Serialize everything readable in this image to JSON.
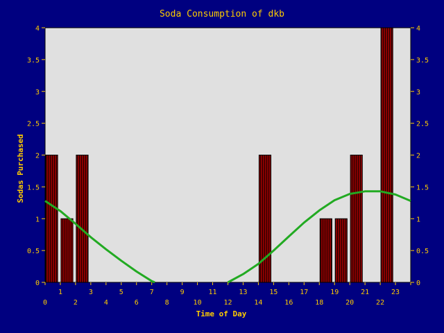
{
  "colors": {
    "background": "#000080",
    "plot_area": "#e0e0e0",
    "text": "#ffcc00",
    "bar_fill": "#880000",
    "bar_stripe": "#220000",
    "trend_line": "#22aa22",
    "axis": "#000000"
  },
  "chart_data": {
    "type": "bar",
    "title": "Soda Consumption of dkb",
    "xlabel": "Time of Day",
    "ylabel": "Sodas Purchased",
    "x_ticks_bottom": [
      "0",
      "2",
      "4",
      "6",
      "8",
      "10",
      "12",
      "14",
      "16",
      "18",
      "20",
      "22"
    ],
    "x_ticks_top": [
      "1",
      "3",
      "5",
      "7",
      "9",
      "11",
      "13",
      "15",
      "17",
      "19",
      "21",
      "23"
    ],
    "y_ticks": [
      "0",
      "0.5",
      "1",
      "1.5",
      "2",
      "2.5",
      "3",
      "3.5",
      "4"
    ],
    "ylim": [
      0,
      4
    ],
    "xlim": [
      0,
      24
    ],
    "categories": [
      "0",
      "1",
      "2",
      "3",
      "4",
      "5",
      "6",
      "7",
      "8",
      "9",
      "10",
      "11",
      "12",
      "13",
      "14",
      "15",
      "16",
      "17",
      "18",
      "19",
      "20",
      "21",
      "22",
      "23"
    ],
    "values": [
      2,
      1,
      2,
      0,
      0,
      0,
      0,
      0,
      0,
      0,
      0,
      0,
      0,
      0,
      2,
      0,
      0,
      0,
      1,
      1,
      2,
      0,
      4,
      0
    ],
    "trend": {
      "name": "",
      "x": [
        0,
        1,
        2,
        3,
        4,
        5,
        6,
        7,
        7.2,
        12,
        13,
        14,
        15,
        16,
        17,
        18,
        19,
        20,
        21,
        22,
        23,
        24
      ],
      "y": [
        1.28,
        1.12,
        0.92,
        0.71,
        0.52,
        0.34,
        0.17,
        0.02,
        0,
        0,
        0.13,
        0.29,
        0.5,
        0.72,
        0.94,
        1.13,
        1.29,
        1.39,
        1.43,
        1.43,
        1.38,
        1.28
      ]
    },
    "grid": false,
    "legend": "none"
  }
}
